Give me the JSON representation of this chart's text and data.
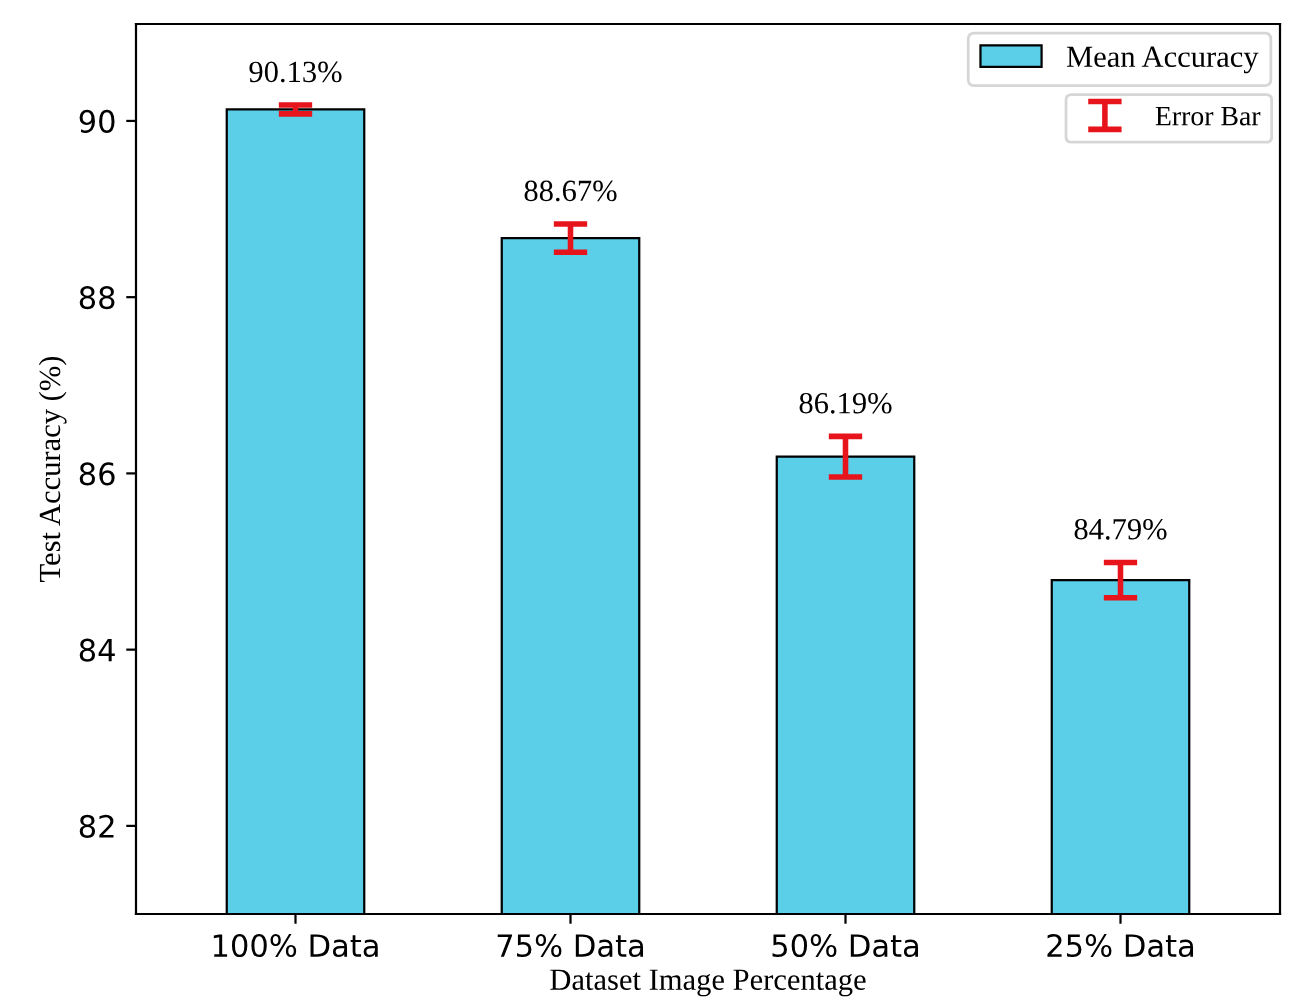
{
  "chart_data": {
    "type": "bar",
    "xlabel": "Dataset Image Percentage",
    "ylabel": "Test Accuracy (%)",
    "categories": [
      "100% Data",
      "75% Data",
      "50% Data",
      "25% Data"
    ],
    "series": [
      {
        "name": "Mean Accuracy",
        "color": "#5bcee8",
        "values": [
          90.13,
          88.67,
          86.19,
          84.79
        ],
        "errors": [
          0.05,
          0.16,
          0.23,
          0.2
        ],
        "value_labels": [
          "90.13%",
          "88.67%",
          "86.19%",
          "84.79%"
        ]
      }
    ],
    "ylim": [
      81,
      91.1
    ],
    "yticks": [
      82,
      84,
      86,
      88,
      90
    ],
    "annotations": [
      "Error Bar"
    ],
    "grid": false,
    "legend": "top right"
  }
}
